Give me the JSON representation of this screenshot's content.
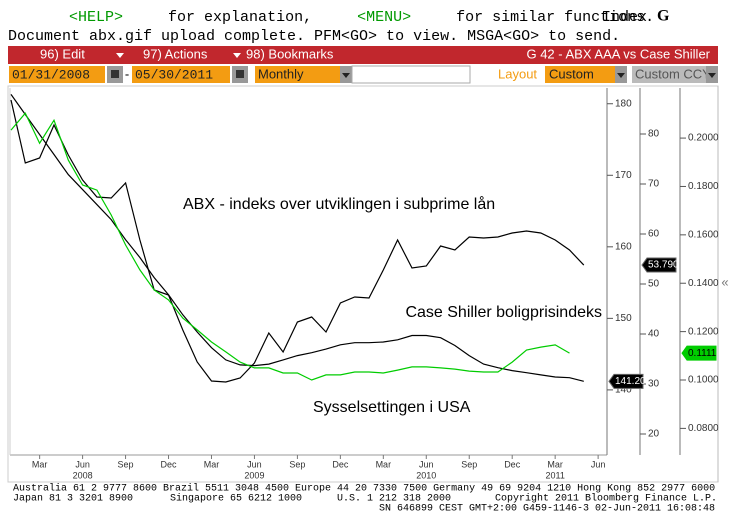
{
  "header": {
    "help_key": "<HELP>",
    "help_text": "for explanation,",
    "menu_key": "<MENU>",
    "menu_text": "for similar functions.",
    "index_label": "Index",
    "index_key": "G",
    "status": "Document abx.gif upload complete. PFM<GO> to view. MSGA<GO> to send."
  },
  "menu_bar": {
    "items": [
      "96) Edit",
      "97) Actions",
      "98) Bookmarks"
    ],
    "title": "G 42 - ABX AAA vs Case Shiller"
  },
  "toolbar": {
    "start_date": "01/31/2008",
    "separator": "-",
    "end_date": "05/30/2011",
    "frequency": "Monthly",
    "layout_label": "Layout",
    "layout": "Custom",
    "currency": "Custom CCY"
  },
  "side_toggle": "«",
  "chart_data": {
    "type": "line",
    "annotations": [
      "ABX - indeks over utviklingen i subprime lån",
      "Case Shiller boligprisindeks",
      "Sysselsettingen i USA"
    ],
    "x": [
      "2008-01",
      "2008-02",
      "2008-03",
      "2008-04",
      "2008-05",
      "2008-06",
      "2008-07",
      "2008-08",
      "2008-09",
      "2008-10",
      "2008-11",
      "2008-12",
      "2009-01",
      "2009-02",
      "2009-03",
      "2009-04",
      "2009-05",
      "2009-06",
      "2009-07",
      "2009-08",
      "2009-09",
      "2009-10",
      "2009-11",
      "2009-12",
      "2010-01",
      "2010-02",
      "2010-03",
      "2010-04",
      "2010-05",
      "2010-06",
      "2010-07",
      "2010-08",
      "2010-09",
      "2010-10",
      "2010-11",
      "2010-12",
      "2011-01",
      "2011-02",
      "2011-03",
      "2011-04",
      "2011-05"
    ],
    "xticks": [
      {
        "value": "2008-03",
        "label": "Mar"
      },
      {
        "value": "2008-06",
        "label": "Jun"
      },
      {
        "value": "2008-09",
        "label": "Sep"
      },
      {
        "value": "2008-12",
        "label": "Dec"
      },
      {
        "value": "2009-03",
        "label": "Mar"
      },
      {
        "value": "2009-06",
        "label": "Jun"
      },
      {
        "value": "2009-09",
        "label": "Sep"
      },
      {
        "value": "2009-12",
        "label": "Dec"
      },
      {
        "value": "2010-03",
        "label": "Mar"
      },
      {
        "value": "2010-06",
        "label": "Jun"
      },
      {
        "value": "2010-09",
        "label": "Sep"
      },
      {
        "value": "2010-12",
        "label": "Dec"
      },
      {
        "value": "2011-03",
        "label": "Mar"
      },
      {
        "value": "2011-06",
        "label": "Jun"
      }
    ],
    "year_labels": [
      {
        "value": "2008-06",
        "label": "2008"
      },
      {
        "value": "2009-06",
        "label": "2009"
      },
      {
        "value": "2010-06",
        "label": "2010"
      },
      {
        "value": "2011-03",
        "label": "2011"
      }
    ],
    "ylim": [
      130.9,
      182.2
    ],
    "yticks": [
      140,
      150,
      160,
      170,
      180
    ],
    "y2lim": [
      15.8,
      89.2
    ],
    "y2ticks": [
      20,
      30,
      40,
      50,
      60,
      70,
      80
    ],
    "y3lim": [
      0.069,
      0.2207
    ],
    "y3ticks": [
      {
        "value": 0.08,
        "label": "0.0800"
      },
      {
        "value": 0.1,
        "label": "0.1000"
      },
      {
        "value": 0.12,
        "label": "0.1200"
      },
      {
        "value": 0.14,
        "label": "0.1400"
      },
      {
        "value": 0.16,
        "label": "0.1600"
      },
      {
        "value": 0.18,
        "label": "0.1800"
      },
      {
        "value": 0.2,
        "label": "0.2000"
      }
    ],
    "series": [
      {
        "color": "#000000",
        "axis": "y2",
        "last_label": "53.790",
        "values": [
          86.8,
          74.2,
          75.2,
          81.8,
          75.8,
          70.8,
          67.4,
          67.2,
          70.2,
          58.8,
          48.8,
          47.8,
          40.8,
          34.4,
          30.6,
          30.4,
          31.2,
          34.2,
          40.2,
          36.4,
          42.4,
          43.4,
          40.4,
          46.2,
          47.4,
          47.2,
          52.8,
          58.8,
          53.2,
          53.6,
          57.6,
          56.8,
          59.4,
          59.2,
          59.4,
          60.2,
          60.6,
          60.2,
          58.8,
          56.8,
          53.79
        ]
      },
      {
        "color": "#000000",
        "axis": "y",
        "last_label": "141.20",
        "values": [
          181.3,
          178.5,
          175.7,
          172.9,
          170.1,
          168.0,
          165.9,
          163.8,
          161.0,
          158.5,
          155.7,
          153.3,
          150.5,
          148.1,
          145.9,
          144.2,
          143.5,
          143.4,
          143.6,
          144.2,
          144.8,
          145.2,
          145.7,
          146.3,
          146.6,
          146.6,
          146.7,
          147.0,
          147.6,
          147.6,
          147.3,
          146.2,
          144.8,
          143.6,
          143.1,
          142.7,
          142.4,
          142.1,
          141.8,
          141.7,
          141.2
        ]
      },
      {
        "color": "#00cc00",
        "axis": "y3",
        "last_label": "0.1111",
        "values": [
          0.2033,
          0.2103,
          0.1979,
          0.2074,
          0.1909,
          0.1806,
          0.1785,
          0.1682,
          0.1558,
          0.1455,
          0.1372,
          0.1331,
          0.1256,
          0.1207,
          0.1157,
          0.1116,
          0.1074,
          0.105,
          0.105,
          0.1029,
          0.1029,
          0.1,
          0.1021,
          0.1021,
          0.1033,
          0.1033,
          0.1029,
          0.1041,
          0.1054,
          0.1054,
          0.105,
          0.1045,
          0.1037,
          0.1033,
          0.1033,
          0.1074,
          0.1124,
          0.1136,
          0.1145,
          0.1111,
          null
        ]
      }
    ]
  },
  "footer": {
    "line1": "Australia 61 2 9777 8600 Brazil 5511 3048 4500 Europe 44 20 7330 7500 Germany 49 69 9204 1210 Hong Kong 852 2977 6000",
    "line2": [
      "Japan 81 3 3201 8900",
      "Singapore 65 6212 1000",
      "U.S. 1 212 318 2000",
      "Copyright 2011 Bloomberg Finance L.P."
    ],
    "line3": "SN 646899 CEST GMT+2:00 G459-1146-3 02-Jun-2011 16:08:48"
  }
}
